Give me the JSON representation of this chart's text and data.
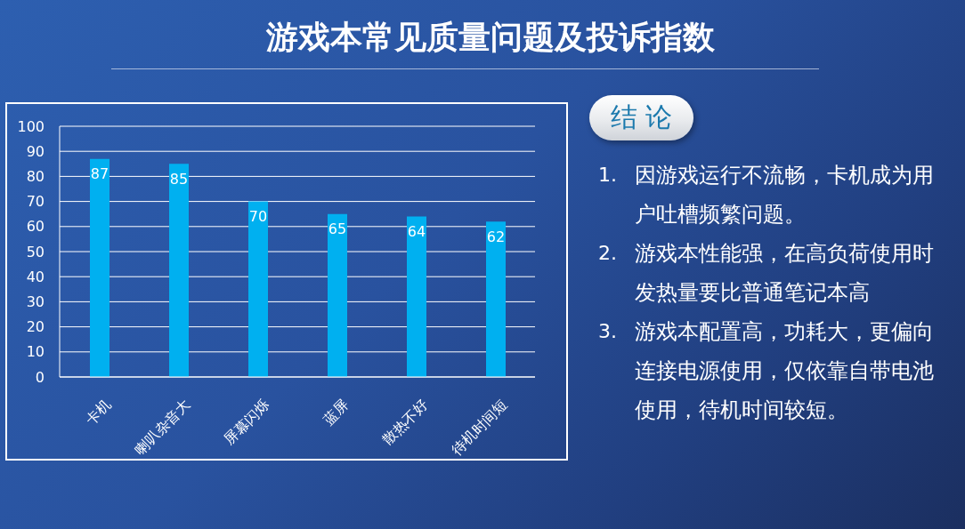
{
  "chart_data": [
    {
      "type": "bar",
      "title": "游戏本常见质量问题及投诉指数",
      "categories": [
        "卡机",
        "喇叭杂音大",
        "屏幕闪烁",
        "蓝屏",
        "散热不好",
        "待机时间短"
      ],
      "values": [
        87,
        85,
        70,
        65,
        64,
        62
      ],
      "color": "#00b0f0",
      "ylim": [
        0,
        100
      ],
      "yticks": [
        0,
        10,
        20,
        30,
        40,
        50,
        60,
        70,
        80,
        90,
        100
      ],
      "grid": "y",
      "data_labels": true
    },
    {
      "type": "other",
      "title": "结 论",
      "annotations": [
        "1. 因游戏运行不流畅，卡机成为用户吐槽频繁问题。",
        "2. 游戏本性能强，在高负荷使用时发热量要比普通笔记本高",
        "3. 游戏本配置高，功耗大，更偏向连接电源使用，仅依靠自带电池使用，待机时间较短。"
      ]
    }
  ]
}
